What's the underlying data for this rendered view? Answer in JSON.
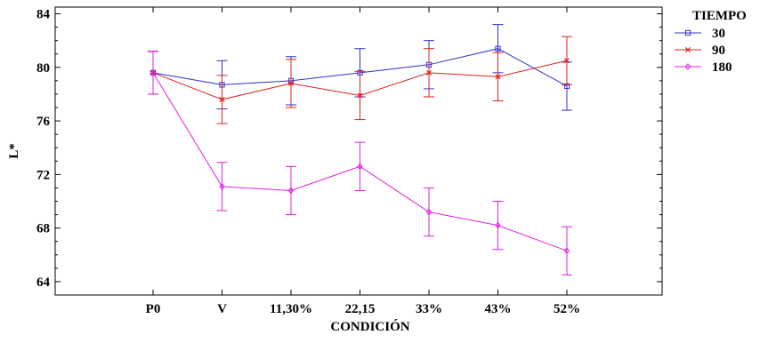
{
  "chart_data": {
    "type": "line",
    "xlabel": "CONDICIÓN",
    "ylabel": "L*",
    "categories": [
      "P0",
      "V",
      "11,30%",
      "22,15",
      "33%",
      "43%",
      "52%"
    ],
    "ylim": [
      63,
      84.5
    ],
    "yticks": [
      64,
      68,
      72,
      76,
      80,
      84
    ],
    "legend": {
      "title": "TIEMPO",
      "placement": "top-right-outside"
    },
    "error_bars": true,
    "series": [
      {
        "name": "30",
        "color": "#2f2fd6",
        "marker": "square",
        "values": [
          79.6,
          78.7,
          79.0,
          79.6,
          80.2,
          81.4,
          78.6
        ],
        "errors": [
          1.6,
          1.8,
          1.8,
          1.8,
          1.8,
          1.8,
          1.8
        ]
      },
      {
        "name": "90",
        "color": "#e02020",
        "marker": "x",
        "values": [
          79.6,
          77.6,
          78.8,
          77.9,
          79.6,
          79.3,
          80.5
        ],
        "errors": [
          1.6,
          1.8,
          1.8,
          1.8,
          1.8,
          1.8,
          1.8
        ]
      },
      {
        "name": "180",
        "color": "#e020e0",
        "marker": "diamond",
        "values": [
          79.6,
          71.1,
          70.8,
          72.6,
          69.2,
          68.2,
          66.3
        ],
        "errors": [
          1.6,
          1.8,
          1.8,
          1.8,
          1.8,
          1.8,
          1.8
        ]
      }
    ]
  }
}
